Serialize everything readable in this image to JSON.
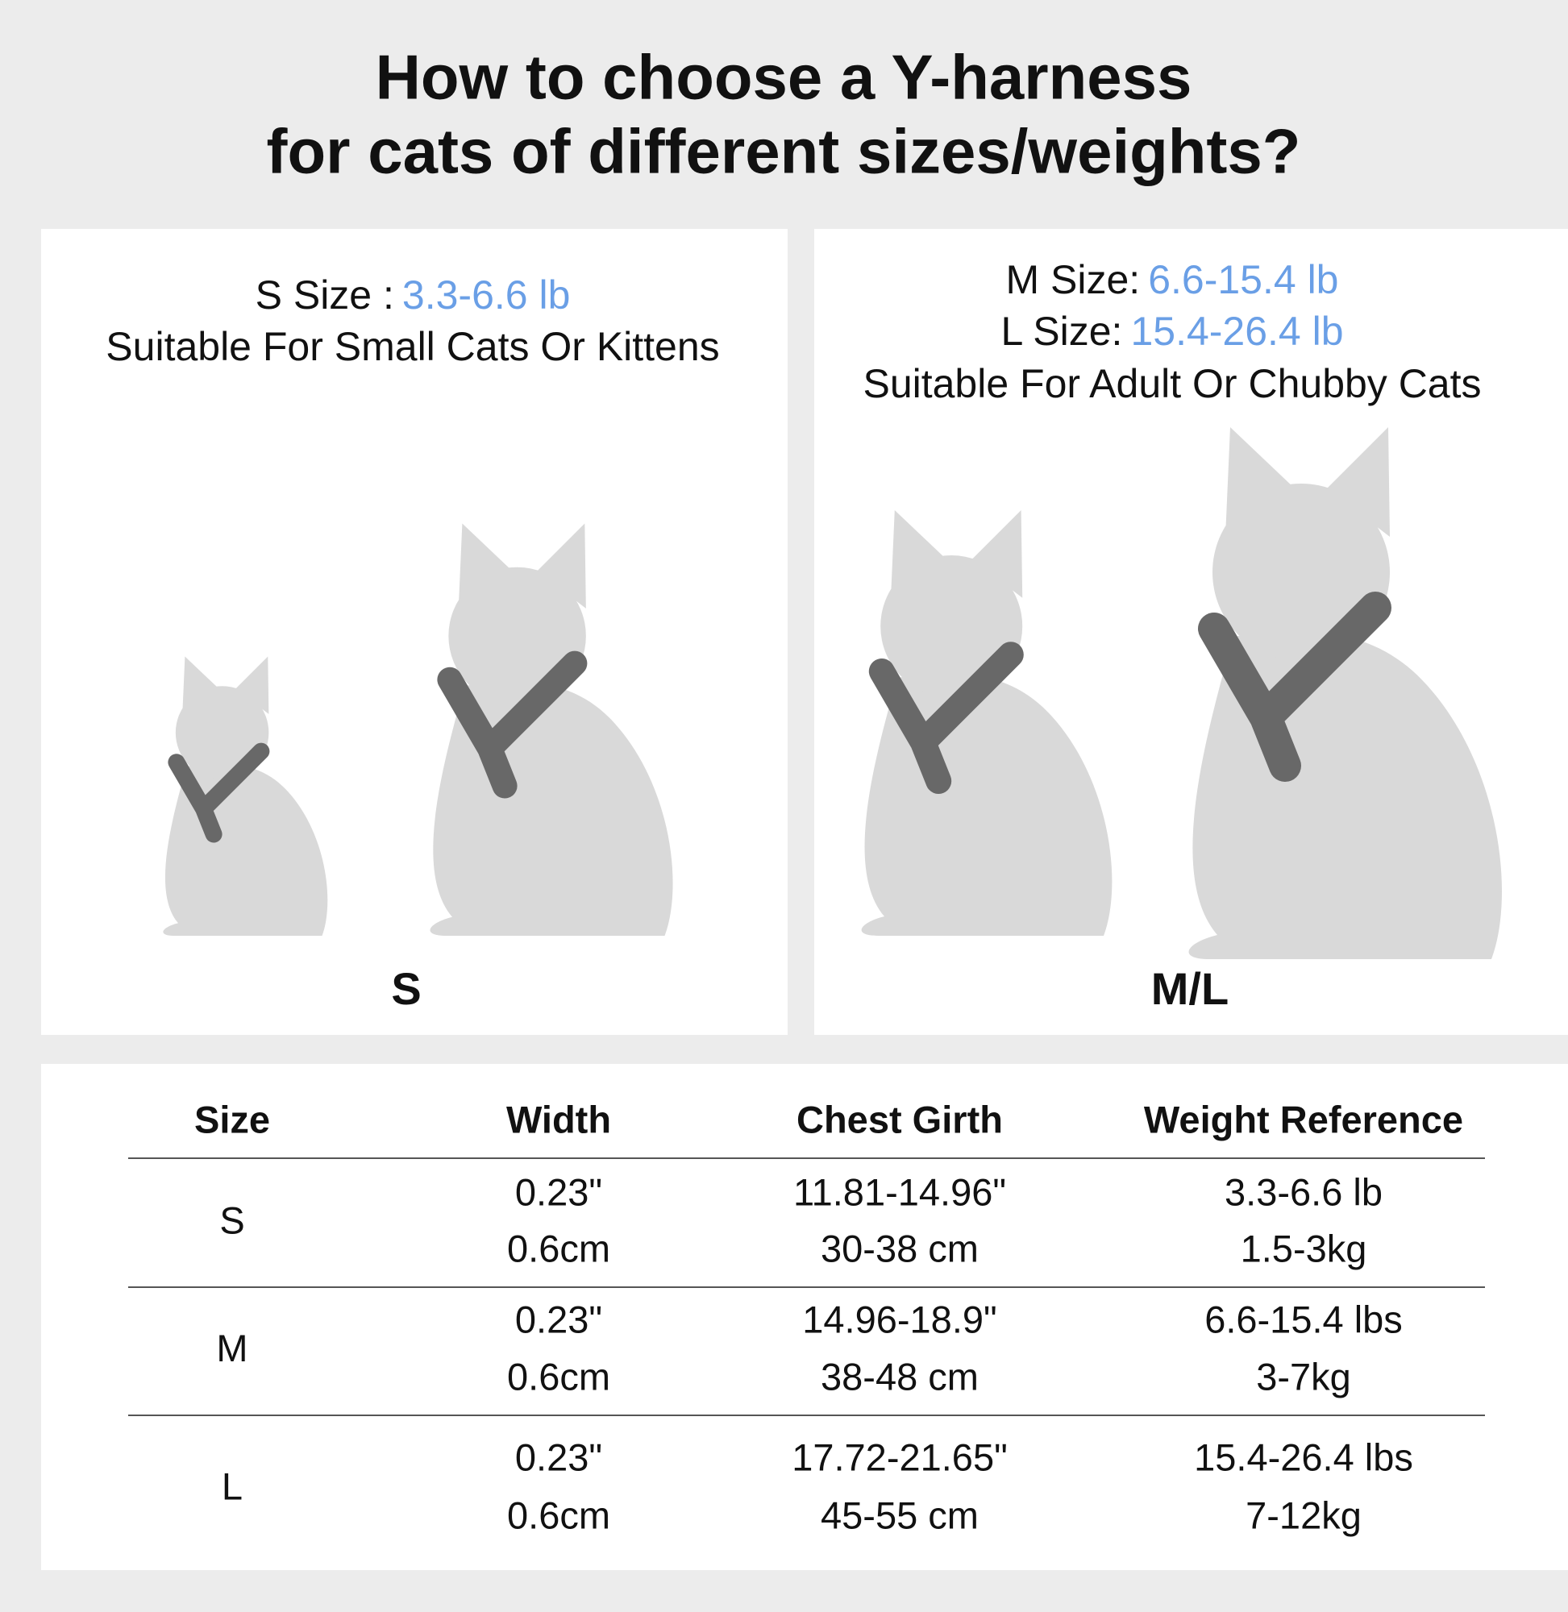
{
  "header": {
    "title": [
      "How to choose a Y-harness",
      "for cats of different sizes/weights?"
    ]
  },
  "panels": [
    {
      "lines": [
        [
          "S Size :",
          "3.3-6.6 lb"
        ],
        [
          "Suitable For Small Cats Or Kittens"
        ]
      ],
      "caption": "S"
    },
    {
      "lines": [
        [
          "M Size:",
          "6.6-15.4 lb"
        ],
        [
          "L Size:",
          "15.4-26.4 lb"
        ],
        [
          "Suitable For Adult Or Chubby Cats"
        ]
      ],
      "caption": "M/L"
    }
  ],
  "table": {
    "columns": [
      "Size",
      "Width",
      "Chest Girth",
      "Weight Reference"
    ],
    "rows": [
      [
        "S",
        [
          "0.23\"",
          "0.6cm"
        ],
        [
          "11.81-14.96\"",
          "30-38 cm"
        ],
        [
          "3.3-6.6 lb",
          "1.5-3kg"
        ]
      ],
      [
        "M",
        [
          "0.23\"",
          "0.6cm"
        ],
        [
          "14.96-18.9\"",
          "38-48 cm"
        ],
        [
          "6.6-15.4 lbs",
          "3-7kg"
        ]
      ],
      [
        "L",
        [
          "0.23\"",
          "0.6cm"
        ],
        [
          "17.72-21.65\"",
          "45-55 cm"
        ],
        [
          "15.4-26.4 lbs",
          "7-12kg"
        ]
      ]
    ]
  }
}
